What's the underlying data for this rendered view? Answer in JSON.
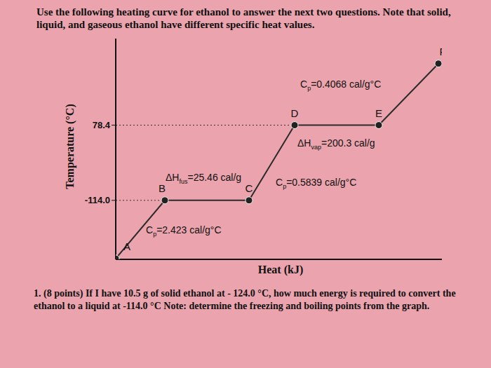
{
  "chart_data": {
    "type": "line",
    "title": "Use the following heating curve for ethanol to answer the next two questions. Note that solid, liquid, and gaseous ethanol have different specific heat values.",
    "x_label": "Heat (kJ)",
    "y_label": "Temperature (°C)",
    "x": [
      0,
      70,
      190,
      255,
      375,
      460
    ],
    "values": [
      -263,
      -114,
      -114,
      78.4,
      78.4,
      236
    ],
    "point_labels": [
      "A",
      "B",
      "C",
      "D",
      "E",
      "F"
    ],
    "color": "#2b2b2b",
    "marker": "circle",
    "xlim": [
      0,
      465
    ],
    "xticks": [],
    "ylim": [
      -265,
      300
    ],
    "yticks": [
      78.4,
      {
        "value": -114,
        "label": "-114.0"
      }
    ],
    "tick_labels": "y",
    "grid": false,
    "annotations": [
      {
        "text": "C",
        "sub": "p",
        "after": "=0.4068 cal/g°C"
      },
      {
        "text": "ΔH",
        "sub": "vap",
        "after": "=200.3 cal/g"
      },
      {
        "text": "ΔH",
        "sub": "fus",
        "after": "=25.46 cal/g"
      },
      {
        "text": "C",
        "sub": "p",
        "after": "=0.5839 cal/g°C"
      },
      {
        "text": "C",
        "sub": "p",
        "after": "=2.423 cal/g°C"
      }
    ],
    "caption": "1. (8 points) If I have 10.5 g of solid ethanol at - 124.0 °C, how much energy is required to convert the ethanol to a liquid at -114.0 °C Note: determine the freezing and boiling points from the graph."
  }
}
